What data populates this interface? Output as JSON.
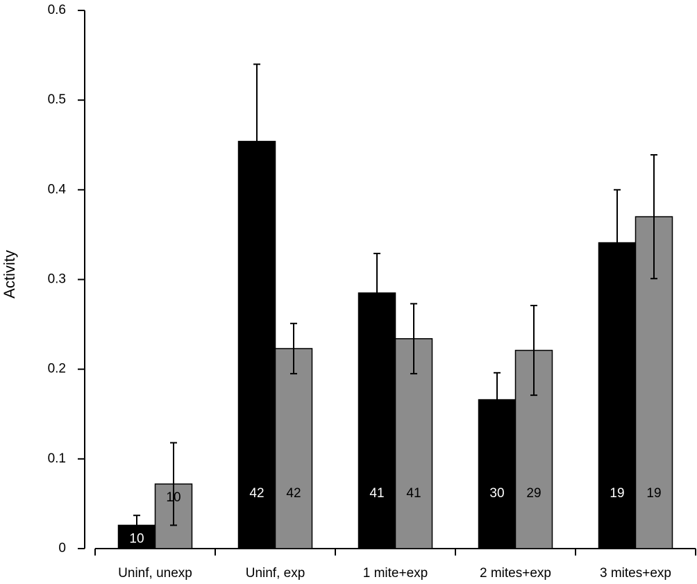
{
  "chart_data": {
    "type": "bar",
    "y_label": "Activity",
    "categories": [
      "Uninf, unexp",
      "Uninf, exp",
      "1 mite+exp",
      "2 mites+exp",
      "3 mites+exp"
    ],
    "series": [
      {
        "color": "#000000",
        "text_color": "#ffffff",
        "values": [
          0.026,
          0.454,
          0.285,
          0.166,
          0.341
        ],
        "errors": [
          0.011,
          0.086,
          0.044,
          0.03,
          0.059
        ],
        "n_labels": [
          "10",
          "42",
          "41",
          "30",
          "19"
        ]
      },
      {
        "color": "#8c8c8c",
        "text_color": "#000000",
        "values": [
          0.072,
          0.223,
          0.234,
          0.221,
          0.37
        ],
        "errors": [
          0.046,
          0.028,
          0.039,
          0.05,
          0.069
        ],
        "n_labels": [
          "10",
          "42",
          "41",
          "29",
          "19"
        ]
      }
    ],
    "ylim": [
      0,
      0.6
    ],
    "yticks": [
      0,
      0.1,
      0.2,
      0.3,
      0.4,
      0.5,
      0.6
    ]
  }
}
